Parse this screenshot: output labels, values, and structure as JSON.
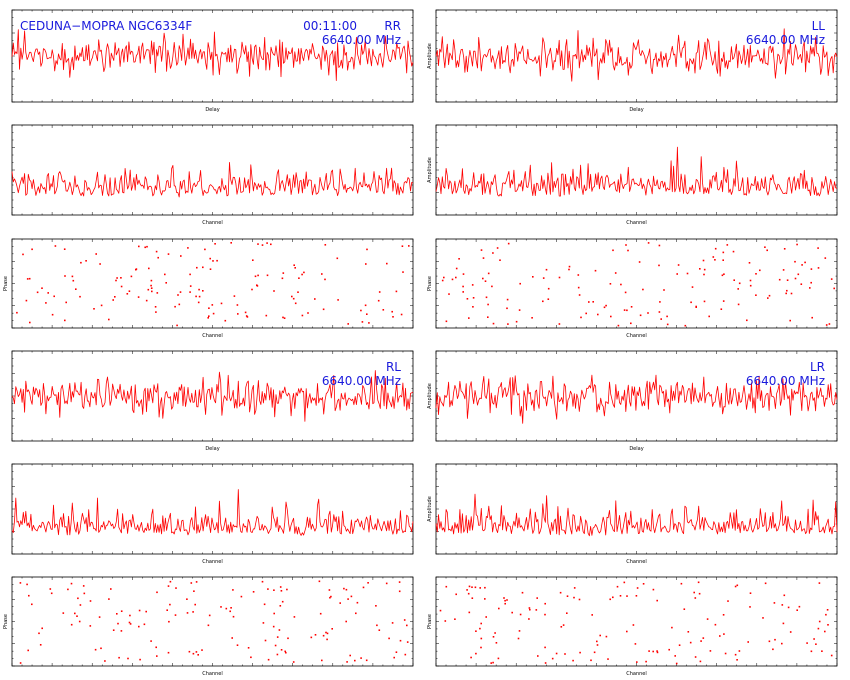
{
  "header": {
    "source": "CEDUNA−MOPRA NGC6334F",
    "time": "00:11:00",
    "frequency": "6640.00 MHz"
  },
  "colors": {
    "trace": "#ff0000",
    "header_text": "#1a1adc",
    "frame": "#000000"
  },
  "chart_data": [
    {
      "id": "rr-delay",
      "type": "line",
      "polarization": "RR",
      "xlabel": "Delay",
      "ylabel": "",
      "grid": false,
      "seed": 11,
      "noise": "delay"
    },
    {
      "id": "rr-amp",
      "type": "line",
      "xlabel": "Channel",
      "ylabel": "",
      "grid": false,
      "seed": 12,
      "noise": "amp"
    },
    {
      "id": "rr-phase",
      "type": "scatter",
      "xlabel": "Channel",
      "ylabel": "Phase",
      "grid": false,
      "seed": 13,
      "noise": "phase"
    },
    {
      "id": "ll-delay",
      "type": "line",
      "polarization": "LL",
      "xlabel": "Delay",
      "ylabel": "Amplitude",
      "grid": false,
      "seed": 21,
      "noise": "delay"
    },
    {
      "id": "ll-amp",
      "type": "line",
      "xlabel": "Channel",
      "ylabel": "Amplitude",
      "grid": false,
      "seed": 22,
      "noise": "amp"
    },
    {
      "id": "ll-phase",
      "type": "scatter",
      "xlabel": "Channel",
      "ylabel": "Phase",
      "grid": false,
      "seed": 23,
      "noise": "phase"
    },
    {
      "id": "rl-delay",
      "type": "line",
      "polarization": "RL",
      "xlabel": "Delay",
      "ylabel": "",
      "grid": false,
      "seed": 31,
      "noise": "delay"
    },
    {
      "id": "rl-amp",
      "type": "line",
      "xlabel": "Channel",
      "ylabel": "",
      "grid": false,
      "seed": 32,
      "noise": "amp"
    },
    {
      "id": "rl-phase",
      "type": "scatter",
      "xlabel": "Channel",
      "ylabel": "Phase",
      "grid": false,
      "seed": 33,
      "noise": "phase"
    },
    {
      "id": "lr-delay",
      "type": "line",
      "polarization": "LR",
      "xlabel": "Delay",
      "ylabel": "Amplitude",
      "grid": false,
      "seed": 41,
      "noise": "delay"
    },
    {
      "id": "lr-amp",
      "type": "line",
      "xlabel": "Channel",
      "ylabel": "Amplitude",
      "grid": false,
      "seed": 42,
      "noise": "amp"
    },
    {
      "id": "lr-phase",
      "type": "scatter",
      "xlabel": "Channel",
      "ylabel": "Phase",
      "grid": false,
      "seed": 43,
      "noise": "phase"
    }
  ]
}
